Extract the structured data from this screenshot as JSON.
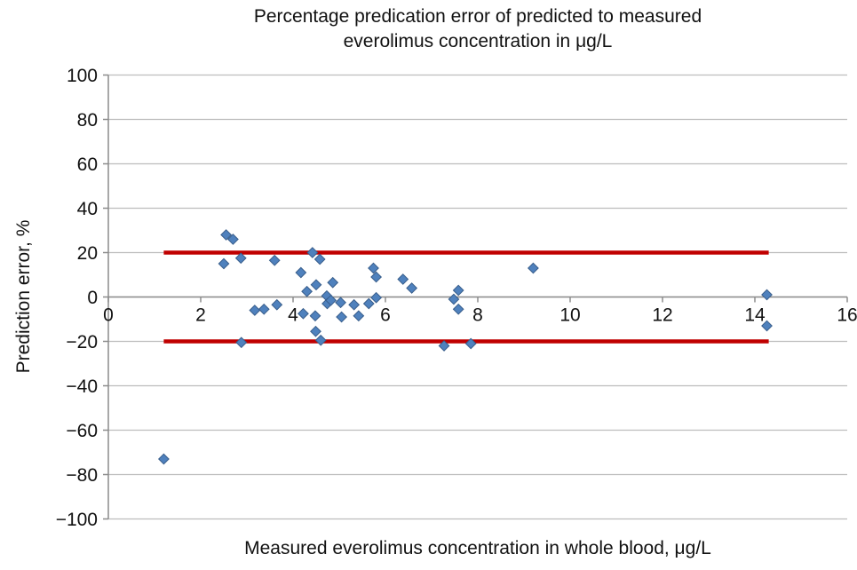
{
  "title": {
    "line1": "Percentage predication error of predicted to measured",
    "line2": "everolimus concentration in μg/L"
  },
  "colors": {
    "marker_fill": "#4f81bd",
    "marker_stroke": "#385d8a",
    "limit_line": "#c00000",
    "gridline": "#bdbdbd",
    "axis_line": "#8c8c8c",
    "text": "#111111",
    "background": "#ffffff"
  },
  "chart_data": {
    "type": "scatter",
    "title": "Percentage predication error of predicted to measured everolimus concentration in μg/L",
    "xlabel": "Measured everolimus concentration in whole blood, μg/L",
    "ylabel": "Prediction error, %",
    "xlim": [
      0,
      16
    ],
    "ylim": [
      -100,
      100
    ],
    "x_ticks": [
      0,
      2,
      4,
      6,
      8,
      10,
      12,
      14,
      16
    ],
    "y_ticks": [
      100,
      80,
      60,
      40,
      20,
      0,
      -20,
      -40,
      -60,
      -80,
      -100
    ],
    "grid": "horizontal",
    "legend": "none",
    "marker": "diamond",
    "reference_lines": [
      {
        "name": "upper-limit",
        "y": 20,
        "x_start": 1.2,
        "x_end": 14.3
      },
      {
        "name": "lower-limit",
        "y": -20,
        "x_start": 1.2,
        "x_end": 14.3
      }
    ],
    "points": [
      [
        1.2,
        -73
      ],
      [
        2.5,
        15
      ],
      [
        2.55,
        28
      ],
      [
        2.7,
        26
      ],
      [
        2.87,
        17.5
      ],
      [
        2.88,
        -20.5
      ],
      [
        3.17,
        -6
      ],
      [
        3.37,
        -5.5
      ],
      [
        3.6,
        16.5
      ],
      [
        3.65,
        -3.5
      ],
      [
        4.17,
        11
      ],
      [
        4.22,
        -7.5
      ],
      [
        4.3,
        2.5
      ],
      [
        4.42,
        20
      ],
      [
        4.48,
        -8.5
      ],
      [
        4.49,
        -15.5
      ],
      [
        4.5,
        5.5
      ],
      [
        4.58,
        17
      ],
      [
        4.6,
        -19.5
      ],
      [
        4.73,
        0.5
      ],
      [
        4.74,
        -3
      ],
      [
        4.82,
        -1.5
      ],
      [
        4.86,
        6.5
      ],
      [
        5.03,
        -2.5
      ],
      [
        5.05,
        -9
      ],
      [
        5.32,
        -3.5
      ],
      [
        5.42,
        -8.5
      ],
      [
        5.64,
        -3
      ],
      [
        5.74,
        13
      ],
      [
        5.8,
        9
      ],
      [
        5.8,
        -0.3
      ],
      [
        6.38,
        8
      ],
      [
        6.57,
        4
      ],
      [
        7.27,
        -22
      ],
      [
        7.48,
        -1
      ],
      [
        7.58,
        3
      ],
      [
        7.58,
        -5.5
      ],
      [
        7.85,
        -21
      ],
      [
        9.2,
        13
      ],
      [
        14.26,
        1
      ],
      [
        14.26,
        -13
      ]
    ]
  }
}
